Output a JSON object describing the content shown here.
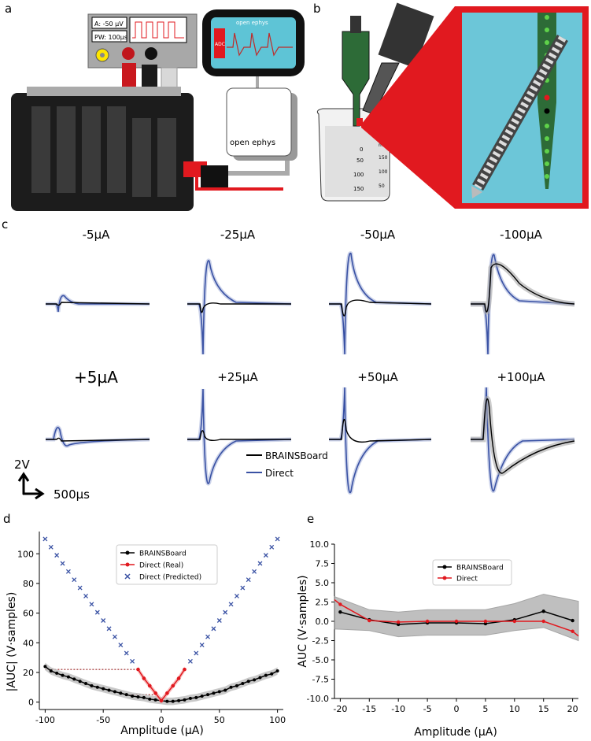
{
  "panels": {
    "a": "a",
    "b": "b",
    "c": "c",
    "d": "d",
    "e": "e"
  },
  "panel_a": {
    "readout_amp": "A: -50 µV",
    "readout_pw": "PW: 100µs",
    "screen_title": "open ephys",
    "screen_side": "ADC",
    "box_label": "open ephys",
    "colors": {
      "red": "#e1191f",
      "board": "#222222",
      "screen": "#5ec4d6"
    }
  },
  "panel_b": {
    "beaker_marks": [
      "0",
      "50",
      "100",
      "150"
    ],
    "beaker_marks_right": [
      "ml",
      "150",
      "100",
      "50"
    ],
    "colors": {
      "water": "#6cc6d8",
      "highlight": "#e1191f",
      "probe": "#2d6b37"
    }
  },
  "panel_c": {
    "titles_top": [
      "-5µA",
      "-25µA",
      "-50µA",
      "-100µA"
    ],
    "titles_bottom": [
      "+5µA",
      "+25µA",
      "+50µA",
      "+100µA"
    ],
    "legend": [
      "BRAINSBoard",
      "Direct"
    ],
    "scale_v": "2V",
    "scale_t": "500µs",
    "colors": {
      "brainsboard": "#000000",
      "direct": "#3a52a4"
    }
  },
  "chart_data": [
    {
      "type": "line",
      "panel": "d",
      "title": "",
      "xlabel": "Amplitude (µA)",
      "ylabel": "|AUC| (V·samples)",
      "xlim": [
        -105,
        105
      ],
      "ylim": [
        -5,
        115
      ],
      "xticks": [
        "-100",
        "-50",
        "0",
        "50",
        "100"
      ],
      "yticks": [
        "0",
        "20",
        "40",
        "60",
        "80",
        "100"
      ],
      "legend": [
        "BRAINSBoard",
        "Direct (Real)",
        "Direct (Predicted)"
      ],
      "series": [
        {
          "name": "BRAINSBoard",
          "color": "#000000",
          "x": [
            -100,
            -95,
            -90,
            -85,
            -80,
            -75,
            -70,
            -65,
            -60,
            -55,
            -50,
            -45,
            -40,
            -35,
            -30,
            -25,
            -20,
            -15,
            -10,
            -5,
            0,
            5,
            10,
            15,
            20,
            25,
            30,
            35,
            40,
            45,
            50,
            55,
            60,
            65,
            70,
            75,
            80,
            85,
            90,
            95,
            100
          ],
          "y": [
            24,
            21,
            19.5,
            18,
            17,
            15.5,
            14,
            12.5,
            11,
            10,
            9,
            8,
            7,
            6,
            5,
            4,
            3.5,
            3,
            2,
            1.5,
            1,
            0.5,
            0.5,
            1,
            1.5,
            2.5,
            3,
            4,
            5,
            6,
            7,
            8,
            10,
            11,
            12.5,
            14,
            15,
            16.5,
            18,
            19,
            21
          ]
        },
        {
          "name": "Direct (Real)",
          "color": "#e1191f",
          "x": [
            -20,
            -15,
            -10,
            -5,
            0,
            5,
            10,
            15,
            20
          ],
          "y": [
            22,
            16,
            11,
            6,
            1,
            6,
            11,
            16,
            22
          ]
        },
        {
          "name": "Direct (Predicted)",
          "color": "#3a52a4",
          "x": [
            -100,
            -95,
            -90,
            -85,
            -80,
            -75,
            -70,
            -65,
            -60,
            -55,
            -50,
            -45,
            -40,
            -35,
            -30,
            -25,
            25,
            30,
            35,
            40,
            45,
            50,
            55,
            60,
            65,
            70,
            75,
            80,
            85,
            90,
            95,
            100
          ],
          "y": [
            110,
            104.5,
            99,
            93.5,
            88,
            82.5,
            77,
            71.5,
            66,
            60.5,
            55,
            49.5,
            44,
            38.5,
            33,
            27.5,
            27.5,
            33,
            38.5,
            44,
            49.5,
            55,
            60.5,
            66,
            71.5,
            77,
            82.5,
            88,
            93.5,
            99,
            104.5,
            110
          ]
        }
      ]
    },
    {
      "type": "line",
      "panel": "e",
      "title": "",
      "xlabel": "Amplitude (µA)",
      "ylabel": "AUC (V·samples)",
      "xlim": [
        -21,
        21
      ],
      "ylim": [
        -10,
        10
      ],
      "xticks": [
        "-20",
        "-15",
        "-10",
        "-5",
        "0",
        "5",
        "10",
        "15",
        "20"
      ],
      "yticks": [
        "10.0",
        "7.5",
        "5.0",
        "2.5",
        "0.0",
        "-2.5",
        "-5.0",
        "-7.5",
        "-10.0"
      ],
      "legend": [
        "BRAINSBoard",
        "Direct"
      ],
      "series": [
        {
          "name": "BRAINSBoard",
          "color": "#000000",
          "x": [
            -20,
            -15,
            -10,
            -5,
            0,
            5,
            10,
            15,
            20
          ],
          "y": [
            1.2,
            0.2,
            -0.4,
            -0.2,
            -0.2,
            -0.3,
            0.2,
            1.3,
            0.1
          ]
        },
        {
          "name": "Direct",
          "color": "#e1191f",
          "x": [
            -21,
            -20,
            -15,
            -10,
            -5,
            0,
            5,
            10,
            15,
            20,
            21
          ],
          "y": [
            2.8,
            2.2,
            0.1,
            -0.1,
            0,
            0,
            0,
            0,
            0,
            -1.3,
            -1.9
          ]
        }
      ]
    }
  ]
}
